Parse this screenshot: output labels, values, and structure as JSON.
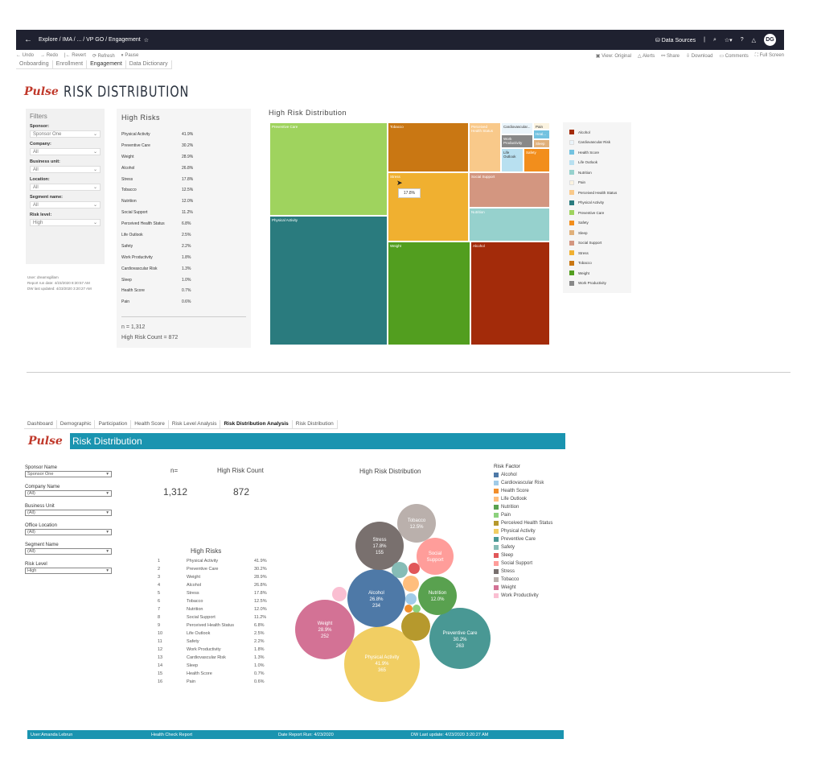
{
  "topbar": {
    "breadcrumb": "Explore / IMA / ... / VP GO / Engagement",
    "data_sources": "Data Sources",
    "avatar": "DG"
  },
  "toolbar": {
    "undo": "Undo",
    "redo": "Redo",
    "revert": "Revert",
    "refresh": "Refresh",
    "pause": "Pause",
    "view": "View: Original",
    "alerts": "Alerts",
    "share": "Share",
    "download": "Download",
    "comments": "Comments",
    "fullscreen": "Full Screen"
  },
  "tabs_top": [
    "Onboarding",
    "Enrollment",
    "Engagement",
    "Data Dictionary"
  ],
  "dashboard1": {
    "logo": "Pulse",
    "title": "RISK DISTRIBUTION",
    "filters_title": "Filters",
    "filters": [
      {
        "label": "Sponsor:",
        "value": "Sponsor One"
      },
      {
        "label": "Company:",
        "value": "All"
      },
      {
        "label": "Business unit:",
        "value": "All"
      },
      {
        "label": "Location:",
        "value": "All"
      },
      {
        "label": "Segment name:",
        "value": "All"
      },
      {
        "label": "Risk level:",
        "value": "High"
      }
    ],
    "meta": [
      "User: dreamsgillam",
      "Report run date: 4/23/2020 8:30:57 AM",
      "DW last updated: 4/23/2020 3:20:27 AM"
    ],
    "high_risks_title": "High Risks",
    "high_risks": [
      {
        "name": "Physical Activity",
        "pct": "41.9%"
      },
      {
        "name": "Preventive Care",
        "pct": "30.2%"
      },
      {
        "name": "Weight",
        "pct": "28.9%"
      },
      {
        "name": "Alcohol",
        "pct": "26.8%"
      },
      {
        "name": "Stress",
        "pct": "17.8%"
      },
      {
        "name": "Tobacco",
        "pct": "12.5%"
      },
      {
        "name": "Nutrition",
        "pct": "12.0%"
      },
      {
        "name": "Social Support",
        "pct": "11.2%"
      },
      {
        "name": "Perceived Health Status",
        "pct": "6.8%"
      },
      {
        "name": "Life Outlook",
        "pct": "2.5%"
      },
      {
        "name": "Safety",
        "pct": "2.2%"
      },
      {
        "name": "Work Productivity",
        "pct": "1.8%"
      },
      {
        "name": "Cardiovascular Risk",
        "pct": "1.3%"
      },
      {
        "name": "Sleep",
        "pct": "1.0%"
      },
      {
        "name": "Health Score",
        "pct": "0.7%"
      },
      {
        "name": "Pain",
        "pct": "0.6%"
      }
    ],
    "n_label": "n = 1,312",
    "count_label": "High Risk Count = 872",
    "treemap_title": "High Risk Distribution",
    "tooltip": "17.8%",
    "treemap_cells": {
      "preventive": "Preventive Care",
      "physical": "Physical Activity",
      "tobacco": "Tobacco",
      "stress": "Stress",
      "weight": "Weight",
      "alcohol": "Alcohol",
      "perceived": "Perceived Health Status",
      "cardio": "Cardiovascular...",
      "pain": "Pain",
      "health": "Heal...",
      "work": "Work Productivity",
      "sleep": "Sleep",
      "life": "Life Outlook",
      "safety": "Safety",
      "social": "Social Support",
      "nutrition": "Nutrition"
    },
    "legend": [
      {
        "name": "Alcohol",
        "color": "#a32b0a"
      },
      {
        "name": "Cardiovascular Risk",
        "color": "#eaf4fa"
      },
      {
        "name": "Health Score",
        "color": "#73c2e0"
      },
      {
        "name": "Life Outlook",
        "color": "#b8e0f0"
      },
      {
        "name": "Nutrition",
        "color": "#96d1cd"
      },
      {
        "name": "Pain",
        "color": "#fbf3e0"
      },
      {
        "name": "Perceived Health Status",
        "color": "#f9c98a"
      },
      {
        "name": "Physical Activity",
        "color": "#2a7b7e"
      },
      {
        "name": "Preventive Care",
        "color": "#9fd35e"
      },
      {
        "name": "Safety",
        "color": "#f28e1c"
      },
      {
        "name": "Sleep",
        "color": "#e0b07a"
      },
      {
        "name": "Social Support",
        "color": "#d39680"
      },
      {
        "name": "Stress",
        "color": "#f0b030"
      },
      {
        "name": "Tobacco",
        "color": "#c97713"
      },
      {
        "name": "Weight",
        "color": "#529e1f"
      },
      {
        "name": "Work Productivity",
        "color": "#888888"
      }
    ]
  },
  "tabs_bottom": [
    "Dashboard",
    "Demographic",
    "Participation",
    "Health Score",
    "Risk Level Analysis",
    "Risk Distribution Analysis",
    "Risk Distribution"
  ],
  "dashboard2": {
    "logo": "Pulse",
    "title": "Risk Distribution",
    "filters": [
      {
        "label": "Sponsor Name",
        "value": "Sponsor One"
      },
      {
        "label": "Company Name",
        "value": "(All)"
      },
      {
        "label": "Business Unit",
        "value": "(All)"
      },
      {
        "label": "Office Location",
        "value": "(All)"
      },
      {
        "label": "Segment Name",
        "value": "(All)"
      },
      {
        "label": "Risk Level",
        "value": "High"
      }
    ],
    "n_label": "n=",
    "n_value": "1,312",
    "count_label": "High Risk Count",
    "count_value": "872",
    "high_risks_title": "High Risks",
    "high_risks": [
      {
        "rank": "1",
        "name": "Physical Activity",
        "pct": "41.9%"
      },
      {
        "rank": "2",
        "name": "Preventive Care",
        "pct": "30.2%"
      },
      {
        "rank": "3",
        "name": "Weight",
        "pct": "28.9%"
      },
      {
        "rank": "4",
        "name": "Alcohol",
        "pct": "26.8%"
      },
      {
        "rank": "5",
        "name": "Stress",
        "pct": "17.8%"
      },
      {
        "rank": "6",
        "name": "Tobacco",
        "pct": "12.5%"
      },
      {
        "rank": "7",
        "name": "Nutrition",
        "pct": "12.0%"
      },
      {
        "rank": "8",
        "name": "Social Support",
        "pct": "11.2%"
      },
      {
        "rank": "9",
        "name": "Perceived Health Status",
        "pct": "6.8%"
      },
      {
        "rank": "10",
        "name": "Life Outlook",
        "pct": "2.5%"
      },
      {
        "rank": "11",
        "name": "Safety",
        "pct": "2.2%"
      },
      {
        "rank": "12",
        "name": "Work Productivity",
        "pct": "1.8%"
      },
      {
        "rank": "13",
        "name": "Cardiovascular Risk",
        "pct": "1.3%"
      },
      {
        "rank": "14",
        "name": "Sleep",
        "pct": "1.0%"
      },
      {
        "rank": "15",
        "name": "Health Score",
        "pct": "0.7%"
      },
      {
        "rank": "16",
        "name": "Pain",
        "pct": "0.6%"
      }
    ],
    "bubble_title": "High Risk Distribution",
    "legend_title": "Risk Factor",
    "legend": [
      {
        "name": "Alcohol",
        "color": "#4e79a7"
      },
      {
        "name": "Cardiovascular Risk",
        "color": "#a0cbe8"
      },
      {
        "name": "Health Score",
        "color": "#f28e2b"
      },
      {
        "name": "Life Outlook",
        "color": "#ffbe7d"
      },
      {
        "name": "Nutrition",
        "color": "#59a14f"
      },
      {
        "name": "Pain",
        "color": "#8cd17d"
      },
      {
        "name": "Perceived Health Status",
        "color": "#b6992d"
      },
      {
        "name": "Physical Activity",
        "color": "#f1ce63"
      },
      {
        "name": "Preventive Care",
        "color": "#499894"
      },
      {
        "name": "Safety",
        "color": "#86bcb6"
      },
      {
        "name": "Sleep",
        "color": "#e15759"
      },
      {
        "name": "Social Support",
        "color": "#ff9d9a"
      },
      {
        "name": "Stress",
        "color": "#79706e"
      },
      {
        "name": "Tobacco",
        "color": "#bab0ac"
      },
      {
        "name": "Weight",
        "color": "#d37295"
      },
      {
        "name": "Work Productivity",
        "color": "#fabfd2"
      }
    ],
    "footer": {
      "user": "User:Amanda Lebrun",
      "report": "Health Check Report",
      "date": "Date Report Run: 4/23/2020",
      "dw": "DW Last update: 4/23/2020 3:20:27 AM"
    }
  },
  "chart_data": {
    "type": "bubble",
    "title": "High Risk Distribution",
    "bubbles": [
      {
        "name": "Physical Activity",
        "pct": "41.9%",
        "count": "365",
        "color": "#f1ce63"
      },
      {
        "name": "Preventive Care",
        "pct": "30.2%",
        "count": "263",
        "color": "#499894"
      },
      {
        "name": "Weight",
        "pct": "28.9%",
        "count": "252",
        "color": "#d37295"
      },
      {
        "name": "Alcohol",
        "pct": "26.8%",
        "count": "234",
        "color": "#4e79a7"
      },
      {
        "name": "Stress",
        "pct": "17.8%",
        "count": "155",
        "color": "#79706e"
      },
      {
        "name": "Tobacco",
        "pct": "12.5%",
        "color": "#bab0ac"
      },
      {
        "name": "Nutrition",
        "pct": "12.0%",
        "color": "#59a14f"
      },
      {
        "name": "Social Support",
        "color": "#ff9d9a"
      }
    ]
  }
}
